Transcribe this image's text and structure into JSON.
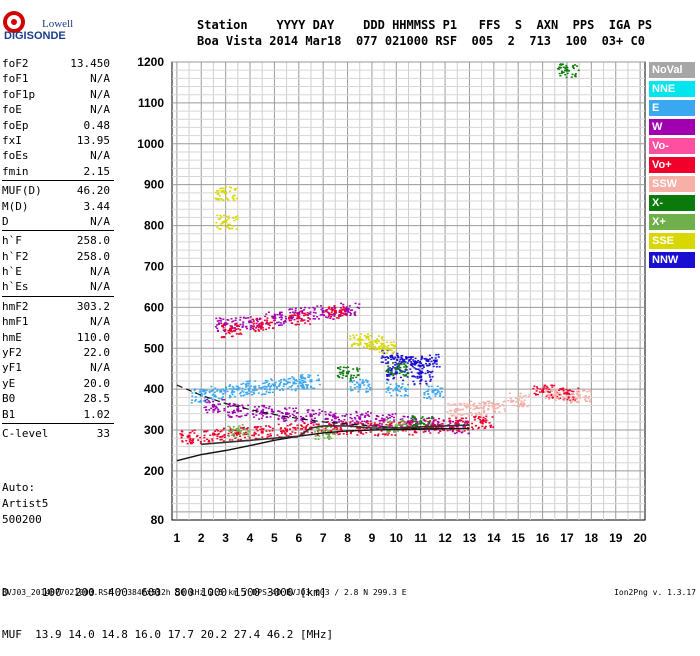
{
  "logo": {
    "line1": "Lowell",
    "line2": "DIGISONDE"
  },
  "header": {
    "labels": "Station    YYYY DAY    DDD HHMMSS P1   FFS  S  AXN  PPS  IGA PS",
    "values": "Boa Vista 2014 Mar18  077 021000 RSF  005  2  713  100  03+ C0"
  },
  "parameters": [
    {
      "name": "foF2",
      "value": "13.450"
    },
    {
      "name": "foF1",
      "value": "N/A"
    },
    {
      "name": "foF1p",
      "value": "N/A"
    },
    {
      "name": "foE",
      "value": "N/A"
    },
    {
      "name": "foEp",
      "value": "0.48"
    },
    {
      "name": "fxI",
      "value": "13.95"
    },
    {
      "name": "foEs",
      "value": "N/A"
    },
    {
      "name": "fmin",
      "value": "2.15"
    },
    {
      "name": "MUF(D)",
      "value": "46.20"
    },
    {
      "name": "M(D)",
      "value": "3.44"
    },
    {
      "name": "D",
      "value": "N/A"
    },
    {
      "name": "h`F",
      "value": "258.0"
    },
    {
      "name": "h`F2",
      "value": "258.0"
    },
    {
      "name": "h`E",
      "value": "N/A"
    },
    {
      "name": "h`Es",
      "value": "N/A"
    },
    {
      "name": "hmF2",
      "value": "303.2"
    },
    {
      "name": "hmF1",
      "value": "N/A"
    },
    {
      "name": "hmE",
      "value": "110.0"
    },
    {
      "name": "yF2",
      "value": "22.0"
    },
    {
      "name": "yF1",
      "value": "N/A"
    },
    {
      "name": "yE",
      "value": "20.0"
    },
    {
      "name": "B0",
      "value": "28.5"
    },
    {
      "name": "B1",
      "value": "1.02"
    },
    {
      "name": "C-level",
      "value": "33"
    }
  ],
  "auto": {
    "line1": "Auto:",
    "line2": "Artist5",
    "line3": "500200"
  },
  "legend": [
    {
      "label": "NoVal",
      "color": "#a6a6a6"
    },
    {
      "label": "NNE",
      "color": "#00e5ee"
    },
    {
      "label": "E",
      "color": "#3aa8f0"
    },
    {
      "label": "W",
      "color": "#a000b0"
    },
    {
      "label": "Vo-",
      "color": "#ff4fa0"
    },
    {
      "label": "Vo+",
      "color": "#f0002a"
    },
    {
      "label": "SSW",
      "color": "#f6b0a8"
    },
    {
      "label": "X-",
      "color": "#0a7a0a"
    },
    {
      "label": "X+",
      "color": "#6fb04a"
    },
    {
      "label": "SSE",
      "color": "#d8d800"
    },
    {
      "label": "NNW",
      "color": "#1a0fd0"
    }
  ],
  "muf": {
    "d_row": "D     100  200  400  600  800 1000 1500 3000 [km]",
    "muf_row": "MUF  13.9 14.0 14.8 16.0 17.7 20.2 27.4 46.2 [MHz]"
  },
  "footer": {
    "left": "BVJ03_2014077021000.RSF / 384fx512h 50 kHz 2.5 km / DPS-4D BVJ03 003 / 2.8 N 299.3 E",
    "right": "Ion2Png v. 1.3.17"
  },
  "chart_data": {
    "type": "scatter",
    "title": "",
    "xlabel": "",
    "ylabel": "",
    "xlim": [
      0.8,
      20.2
    ],
    "ylim": [
      80,
      1200
    ],
    "x_ticks": [
      1,
      2,
      3,
      4,
      5,
      6,
      7,
      8,
      9,
      10,
      11,
      12,
      13,
      14,
      15,
      16,
      17,
      18,
      19,
      20
    ],
    "y_ticks": [
      80,
      200,
      300,
      400,
      500,
      600,
      700,
      800,
      900,
      1000,
      1100,
      1200
    ],
    "grid": true,
    "legend_position": "right",
    "series": [
      {
        "name": "W",
        "color": "#a000b0",
        "points": [
          [
            2.5,
            360
          ],
          [
            3.5,
            350
          ],
          [
            4.5,
            345
          ],
          [
            5.5,
            340
          ],
          [
            6.5,
            335
          ],
          [
            7.5,
            330
          ],
          [
            8.5,
            330
          ],
          [
            9.5,
            325
          ],
          [
            10.5,
            320
          ],
          [
            11.5,
            315
          ],
          [
            12.5,
            310
          ],
          [
            3,
            560
          ],
          [
            4,
            565
          ],
          [
            5,
            575
          ],
          [
            6,
            585
          ],
          [
            7,
            590
          ],
          [
            8,
            595
          ]
        ]
      },
      {
        "name": "Vo+",
        "color": "#f0002a",
        "points": [
          [
            1.5,
            285
          ],
          [
            2.5,
            290
          ],
          [
            3.5,
            292
          ],
          [
            4.5,
            295
          ],
          [
            5.5,
            300
          ],
          [
            6.5,
            305
          ],
          [
            7.5,
            308
          ],
          [
            8.5,
            306
          ],
          [
            9.5,
            305
          ],
          [
            10.5,
            306
          ],
          [
            11.5,
            310
          ],
          [
            12.5,
            315
          ],
          [
            13.5,
            320
          ],
          [
            3.2,
            545
          ],
          [
            4.5,
            560
          ],
          [
            6,
            575
          ],
          [
            7.5,
            590
          ],
          [
            16,
            395
          ],
          [
            17,
            390
          ]
        ]
      },
      {
        "name": "NNW",
        "color": "#1a0fd0",
        "points": [
          [
            9.8,
            480
          ],
          [
            10.3,
            470
          ],
          [
            10.8,
            465
          ],
          [
            11.3,
            470
          ],
          [
            10,
            440
          ],
          [
            11,
            430
          ]
        ]
      },
      {
        "name": "E",
        "color": "#3aa8f0",
        "points": [
          [
            2,
            385
          ],
          [
            2.8,
            395
          ],
          [
            3.5,
            400
          ],
          [
            4.2,
            405
          ],
          [
            5,
            410
          ],
          [
            5.8,
            415
          ],
          [
            6.5,
            420
          ],
          [
            8.5,
            410
          ],
          [
            10,
            400
          ],
          [
            11.5,
            395
          ]
        ]
      },
      {
        "name": "SSW",
        "color": "#f6b0a8",
        "points": [
          [
            12.5,
            350
          ],
          [
            13.3,
            355
          ],
          [
            14,
            360
          ],
          [
            15,
            375
          ],
          [
            16.5,
            385
          ],
          [
            17.5,
            385
          ]
        ]
      },
      {
        "name": "SSE",
        "color": "#d8d800",
        "points": [
          [
            8.5,
            520
          ],
          [
            9,
            515
          ],
          [
            9.5,
            505
          ],
          [
            3,
            810
          ],
          [
            3,
            880
          ]
        ]
      },
      {
        "name": "X-",
        "color": "#0a7a0a",
        "points": [
          [
            8,
            440
          ],
          [
            10,
            450
          ],
          [
            17,
            1180
          ],
          [
            11,
            320
          ]
        ]
      },
      {
        "name": "X+",
        "color": "#6fb04a",
        "points": [
          [
            3.5,
            300
          ],
          [
            7,
            295
          ],
          [
            10,
            310
          ]
        ]
      }
    ],
    "profile_solid": [
      [
        1,
        225
      ],
      [
        2,
        240
      ],
      [
        3,
        250
      ],
      [
        4,
        262
      ],
      [
        5,
        275
      ],
      [
        6,
        285
      ],
      [
        7,
        293
      ],
      [
        8,
        298
      ],
      [
        9,
        300
      ],
      [
        10,
        301
      ],
      [
        11,
        302
      ],
      [
        12,
        303.2
      ],
      [
        13,
        304
      ]
    ],
    "profile_dashed": [
      [
        1,
        410
      ],
      [
        2,
        385
      ],
      [
        3,
        365
      ],
      [
        4,
        350
      ],
      [
        5,
        338
      ],
      [
        6,
        328
      ],
      [
        7,
        320
      ],
      [
        8,
        315
      ],
      [
        9,
        310
      ],
      [
        10,
        306
      ],
      [
        11,
        303
      ],
      [
        12,
        303
      ]
    ],
    "trace": [
      [
        2,
        265
      ],
      [
        3,
        270
      ],
      [
        4,
        275
      ],
      [
        5,
        280
      ],
      [
        6,
        285
      ],
      [
        6.5,
        305
      ],
      [
        7,
        310
      ],
      [
        8,
        310
      ],
      [
        9,
        305
      ],
      [
        10,
        305
      ],
      [
        11,
        308
      ],
      [
        12,
        310
      ],
      [
        13,
        312
      ]
    ]
  }
}
